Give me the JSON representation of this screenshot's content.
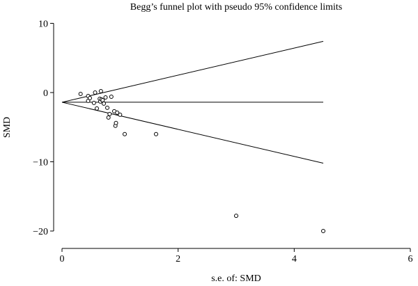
{
  "chart_data": {
    "type": "scatter",
    "title": "Begg’s funnel plot with pseudo 95% confidence limits",
    "xlabel": "s.e. of: SMD",
    "ylabel": "SMD",
    "xlim": [
      0,
      6
    ],
    "ylim": [
      -21.5,
      11
    ],
    "xticks": [
      0,
      2,
      4,
      6
    ],
    "xtick_labels": [
      "0",
      "2",
      "4",
      "6"
    ],
    "yticks": [
      10,
      0,
      -10,
      -20
    ],
    "ytick_labels": [
      "10",
      "0",
      "−10",
      "−20"
    ],
    "grid": false,
    "pooled_estimate": -1.4,
    "lines": [
      {
        "role": "pooled",
        "x": [
          0,
          4.5
        ],
        "y": [
          -1.4,
          -1.4
        ]
      },
      {
        "role": "upper-limit",
        "x": [
          0,
          4.5
        ],
        "y": [
          -1.4,
          7.4
        ]
      },
      {
        "role": "lower-limit",
        "x": [
          0,
          4.5
        ],
        "y": [
          -1.4,
          -10.2
        ]
      }
    ],
    "points": [
      {
        "x": 0.32,
        "y": -0.2
      },
      {
        "x": 0.45,
        "y": -0.5
      },
      {
        "x": 0.45,
        "y": -1.2
      },
      {
        "x": 0.48,
        "y": -0.8
      },
      {
        "x": 0.55,
        "y": -1.5
      },
      {
        "x": 0.57,
        "y": 0.0
      },
      {
        "x": 0.6,
        "y": -2.3
      },
      {
        "x": 0.65,
        "y": -0.9
      },
      {
        "x": 0.66,
        "y": -1.3
      },
      {
        "x": 0.67,
        "y": 0.2
      },
      {
        "x": 0.68,
        "y": -1.0
      },
      {
        "x": 0.7,
        "y": -1.1
      },
      {
        "x": 0.72,
        "y": -1.6
      },
      {
        "x": 0.75,
        "y": -0.7
      },
      {
        "x": 0.78,
        "y": -2.2
      },
      {
        "x": 0.8,
        "y": -3.6
      },
      {
        "x": 0.82,
        "y": -3.1
      },
      {
        "x": 0.85,
        "y": -0.6
      },
      {
        "x": 0.9,
        "y": -2.7
      },
      {
        "x": 0.92,
        "y": -4.8
      },
      {
        "x": 0.93,
        "y": -4.4
      },
      {
        "x": 0.95,
        "y": -2.9
      },
      {
        "x": 1.0,
        "y": -3.2
      },
      {
        "x": 1.08,
        "y": -6.0
      },
      {
        "x": 1.62,
        "y": -6.0
      },
      {
        "x": 3.0,
        "y": -17.8
      },
      {
        "x": 4.5,
        "y": -20.0
      }
    ]
  }
}
